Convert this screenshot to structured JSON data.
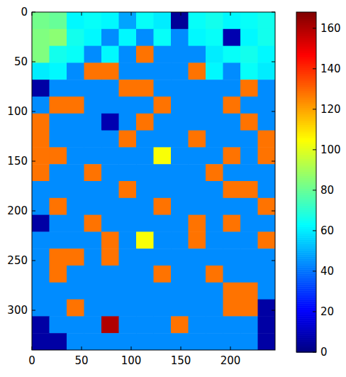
{
  "chart_data": {
    "type": "heatmap",
    "color": "jet",
    "xlim": [
      0,
      245
    ],
    "ylim": [
      340,
      0
    ],
    "xticks": [
      0,
      50,
      100,
      150,
      200
    ],
    "yticks": [
      0,
      50,
      100,
      150,
      200,
      250,
      300
    ],
    "colorbar_range": [
      0,
      168
    ],
    "colorbar_ticks": [
      0,
      20,
      40,
      60,
      80,
      100,
      120,
      140,
      160
    ],
    "cells": [
      [
        82,
        80,
        62,
        64,
        62,
        48,
        64,
        60,
        4,
        64,
        66,
        62,
        64,
        66
      ],
      [
        84,
        86,
        66,
        62,
        44,
        62,
        44,
        64,
        44,
        62,
        64,
        8,
        62,
        66
      ],
      [
        84,
        66,
        64,
        44,
        62,
        44,
        128,
        44,
        44,
        44,
        60,
        64,
        66,
        62
      ],
      [
        60,
        62,
        44,
        128,
        128,
        44,
        44,
        44,
        44,
        128,
        62,
        44,
        64,
        60
      ],
      [
        6,
        44,
        44,
        44,
        44,
        128,
        128,
        44,
        44,
        44,
        44,
        44,
        128,
        44
      ],
      [
        44,
        128,
        128,
        44,
        44,
        44,
        44,
        128,
        44,
        44,
        44,
        128,
        44,
        44
      ],
      [
        128,
        44,
        44,
        44,
        8,
        44,
        128,
        44,
        44,
        44,
        44,
        44,
        128,
        44
      ],
      [
        128,
        44,
        44,
        44,
        44,
        128,
        44,
        44,
        44,
        128,
        44,
        44,
        44,
        128
      ],
      [
        128,
        128,
        44,
        44,
        44,
        44,
        44,
        104,
        44,
        44,
        44,
        128,
        44,
        128
      ],
      [
        128,
        44,
        44,
        128,
        44,
        44,
        44,
        44,
        44,
        44,
        128,
        44,
        44,
        44
      ],
      [
        44,
        44,
        44,
        44,
        44,
        128,
        44,
        44,
        44,
        44,
        44,
        128,
        128,
        44
      ],
      [
        44,
        128,
        44,
        44,
        44,
        44,
        44,
        128,
        44,
        44,
        44,
        44,
        44,
        128
      ],
      [
        6,
        44,
        44,
        128,
        44,
        44,
        44,
        44,
        44,
        128,
        44,
        128,
        44,
        44
      ],
      [
        44,
        44,
        44,
        44,
        128,
        44,
        104,
        44,
        44,
        128,
        44,
        44,
        44,
        128
      ],
      [
        44,
        128,
        128,
        44,
        128,
        44,
        44,
        44,
        44,
        44,
        44,
        44,
        44,
        44
      ],
      [
        44,
        128,
        44,
        44,
        44,
        44,
        44,
        128,
        44,
        44,
        128,
        44,
        44,
        44
      ],
      [
        44,
        44,
        44,
        44,
        44,
        44,
        44,
        44,
        44,
        44,
        44,
        128,
        128,
        44
      ],
      [
        44,
        44,
        128,
        44,
        44,
        44,
        44,
        44,
        44,
        44,
        44,
        128,
        128,
        6
      ],
      [
        6,
        44,
        44,
        44,
        160,
        44,
        44,
        44,
        128,
        44,
        44,
        44,
        44,
        6
      ],
      [
        6,
        6,
        44,
        44,
        44,
        44,
        44,
        44,
        44,
        44,
        44,
        44,
        44,
        6
      ]
    ]
  }
}
